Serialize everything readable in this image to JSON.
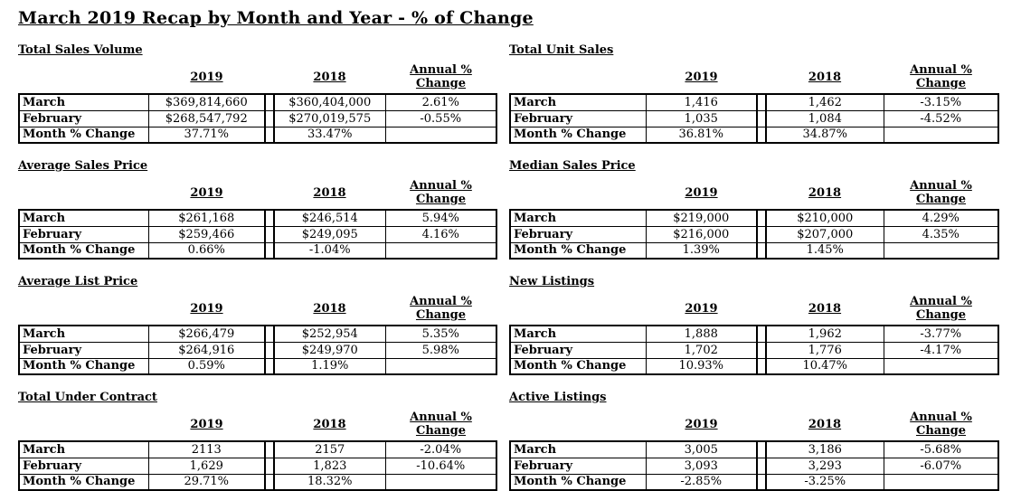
{
  "title": "March 2019 Recap by Month and Year - % of Change",
  "table_columns": [
    "2019",
    "2018",
    "Annual % Change"
  ],
  "row_labels": [
    "March",
    "February",
    "Month % Change"
  ],
  "colors": {
    "text": "#000000",
    "border": "#000000",
    "background": "#ffffff"
  },
  "sections": [
    {
      "heading": "Total Sales Volume",
      "rows": [
        [
          "$369,814,660",
          "$360,404,000",
          "2.61%"
        ],
        [
          "$268,547,792",
          "$270,019,575",
          "-0.55%"
        ],
        [
          "37.71%",
          "33.47%",
          ""
        ]
      ]
    },
    {
      "heading": "Total Unit Sales",
      "rows": [
        [
          "1,416",
          "1,462",
          "-3.15%"
        ],
        [
          "1,035",
          "1,084",
          "-4.52%"
        ],
        [
          "36.81%",
          "34.87%",
          ""
        ]
      ]
    },
    {
      "heading": "Average Sales Price",
      "rows": [
        [
          "$261,168",
          "$246,514",
          "5.94%"
        ],
        [
          "$259,466",
          "$249,095",
          "4.16%"
        ],
        [
          "0.66%",
          "-1.04%",
          ""
        ]
      ]
    },
    {
      "heading": "Median Sales Price",
      "rows": [
        [
          "$219,000",
          "$210,000",
          "4.29%"
        ],
        [
          "$216,000",
          "$207,000",
          "4.35%"
        ],
        [
          "1.39%",
          "1.45%",
          ""
        ]
      ]
    },
    {
      "heading": "Average List Price",
      "rows": [
        [
          "$266,479",
          "$252,954",
          "5.35%"
        ],
        [
          "$264,916",
          "$249,970",
          "5.98%"
        ],
        [
          "0.59%",
          "1.19%",
          ""
        ]
      ]
    },
    {
      "heading": "New Listings",
      "rows": [
        [
          "1,888",
          "1,962",
          "-3.77%"
        ],
        [
          "1,702",
          "1,776",
          "-4.17%"
        ],
        [
          "10.93%",
          "10.47%",
          ""
        ]
      ]
    },
    {
      "heading": "Total Under Contract",
      "rows": [
        [
          "2113",
          "2157",
          "-2.04%"
        ],
        [
          "1,629",
          "1,823",
          "-10.64%"
        ],
        [
          "29.71%",
          "18.32%",
          ""
        ]
      ]
    },
    {
      "heading": "Active Listings",
      "rows": [
        [
          "3,005",
          "3,186",
          "-5.68%"
        ],
        [
          "3,093",
          "3,293",
          "-6.07%"
        ],
        [
          "-2.85%",
          "-3.25%",
          ""
        ]
      ]
    }
  ]
}
